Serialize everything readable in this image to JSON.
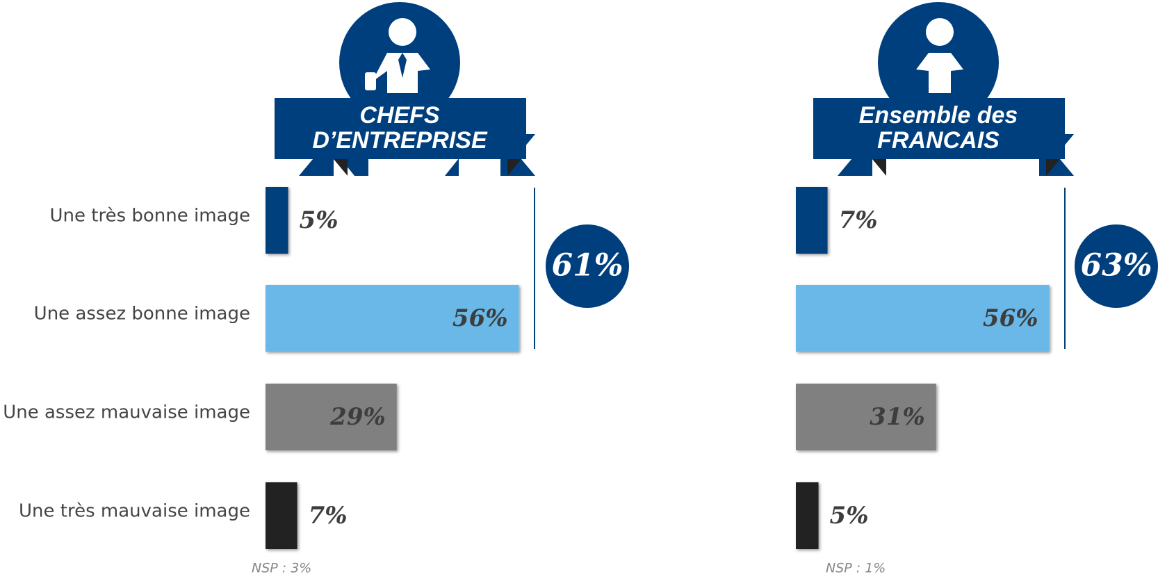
{
  "chart_data": [
    {
      "type": "bar",
      "orientation": "horizontal",
      "title": "CHEFS D’ENTREPRISE",
      "categories": [
        "Une très bonne image",
        "Une assez bonne image",
        "Une assez mauvaise image",
        "Une très mauvaise image"
      ],
      "values": [
        5,
        56,
        29,
        7
      ],
      "value_labels": [
        "5%",
        "56%",
        "29%",
        "7%"
      ],
      "colors": [
        "#003f7d",
        "#6bb8e8",
        "#808080",
        "#222222"
      ],
      "xlim": [
        0,
        100
      ],
      "annotation": "61%",
      "note": "NSP : 3%"
    },
    {
      "type": "bar",
      "orientation": "horizontal",
      "title": "Ensemble des FRANCAIS",
      "values": [
        7,
        56,
        31,
        5
      ],
      "value_labels": [
        "7%",
        "56%",
        "31%",
        "5%"
      ],
      "colors": [
        "#003f7d",
        "#6bb8e8",
        "#808080",
        "#222222"
      ],
      "xlim": [
        0,
        100
      ],
      "annotation": "63%",
      "note": "NSP : 1%"
    }
  ]
}
